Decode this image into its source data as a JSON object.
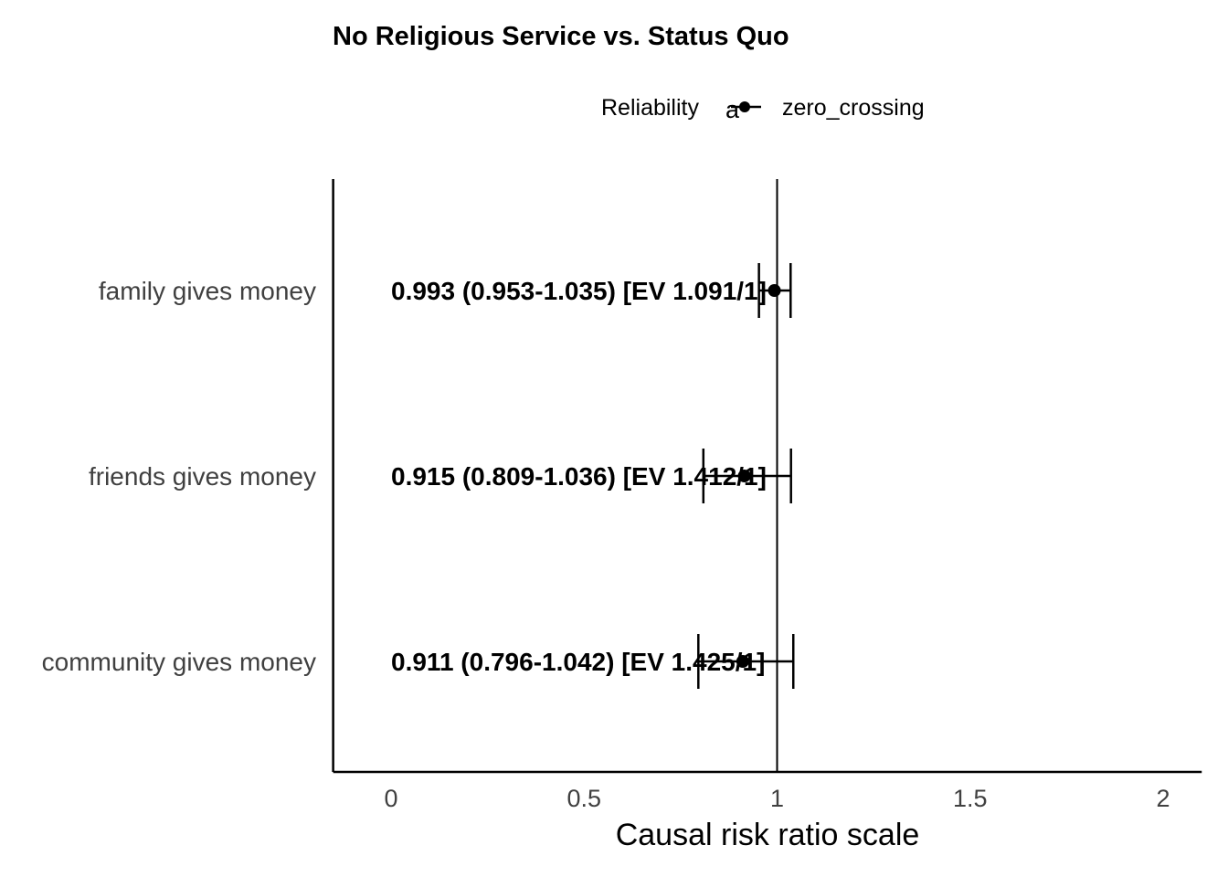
{
  "chart_data": {
    "type": "scatter",
    "title": "No Religious Service vs. Status Quo",
    "xlabel": "Causal risk ratio scale",
    "ylabel": "",
    "xlim": [
      -0.15,
      2.1
    ],
    "x_ticks": [
      0,
      0.5,
      1,
      1.5,
      2
    ],
    "x_tick_labels": [
      "0",
      "0.5",
      "1",
      "1.5",
      "2"
    ],
    "reference_line": 1,
    "legend": {
      "title": "Reliability",
      "entries": [
        "zero_crossing"
      ],
      "key_glyph": "a",
      "placement": "top"
    },
    "categories": [
      "family gives money",
      "friends gives money",
      "community gives money"
    ],
    "points": [
      {
        "category": "family gives money",
        "estimate": 0.993,
        "lower": 0.953,
        "upper": 1.035,
        "label": "0.993 (0.953-1.035) [EV 1.091/1]",
        "reliability": "zero_crossing"
      },
      {
        "category": "friends gives money",
        "estimate": 0.915,
        "lower": 0.809,
        "upper": 1.036,
        "label": "0.915 (0.809-1.036) [EV 1.412/1]",
        "reliability": "zero_crossing"
      },
      {
        "category": "community gives money",
        "estimate": 0.911,
        "lower": 0.796,
        "upper": 1.042,
        "label": "0.911 (0.796-1.042) [EV 1.425/1]",
        "reliability": "zero_crossing"
      }
    ],
    "label_x": 0,
    "grid": false,
    "colors": {
      "point": "#000000",
      "text": "#000000",
      "axis_text": "#404040"
    }
  }
}
